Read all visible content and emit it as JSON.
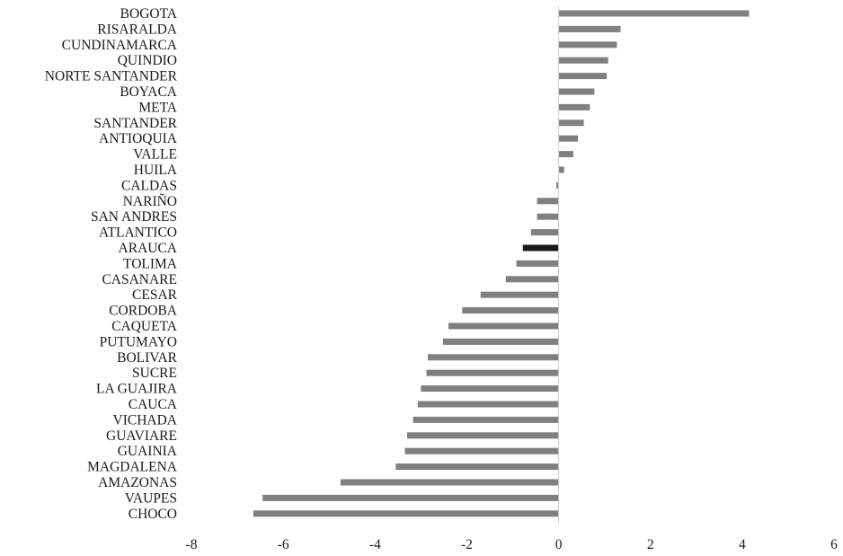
{
  "chart_data": {
    "type": "bar",
    "orientation": "horizontal",
    "title": "",
    "xlabel": "",
    "ylabel": "",
    "xlim": [
      -8,
      6
    ],
    "xticks": [
      "-8",
      "-6",
      "-4",
      "-2",
      "0",
      "2",
      "4",
      "6"
    ],
    "grid": false,
    "legend": "none",
    "colors": {
      "default": "#808080",
      "highlight": "#1a1a1a"
    },
    "highlight_category": "ARAUCA",
    "categories": [
      "BOGOTA",
      "RISARALDA",
      "CUNDINAMARCA",
      "QUINDIO",
      "NORTE SANTANDER",
      "BOYACA",
      "META",
      "SANTANDER",
      "ANTIOQUIA",
      "VALLE",
      "HUILA",
      "CALDAS",
      "NARIÑO",
      "SAN ANDRES",
      "ATLANTICO",
      "ARAUCA",
      "TOLIMA",
      "CASANARE",
      "CESAR",
      "CORDOBA",
      "CAQUETA",
      "PUTUMAYO",
      "BOLIVAR",
      "SUCRE",
      "LA GUAJIRA",
      "CAUCA",
      "VICHADA",
      "GUAVIARE",
      "GUAINIA",
      "MAGDALENA",
      "AMAZONAS",
      "VAUPES",
      "CHOCO"
    ],
    "values": [
      4.15,
      1.35,
      1.27,
      1.08,
      1.05,
      0.78,
      0.68,
      0.55,
      0.42,
      0.32,
      0.12,
      -0.05,
      -0.47,
      -0.47,
      -0.6,
      -0.78,
      -0.92,
      -1.15,
      -1.7,
      -2.1,
      -2.4,
      -2.52,
      -2.85,
      -2.88,
      -3.0,
      -3.07,
      -3.17,
      -3.3,
      -3.35,
      -3.55,
      -4.75,
      -6.45,
      -6.65
    ]
  }
}
